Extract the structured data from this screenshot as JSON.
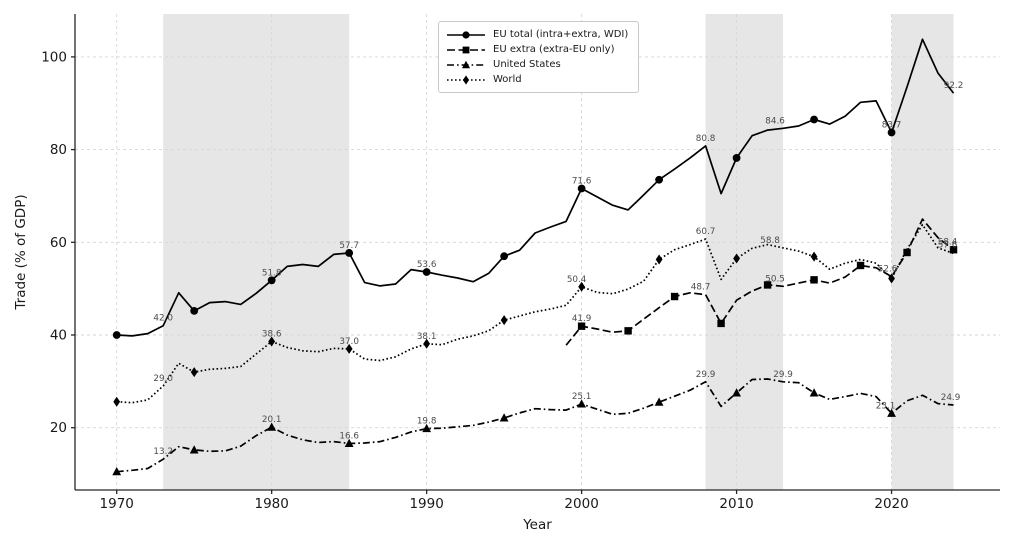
{
  "chart_data": {
    "type": "line",
    "title": "",
    "xlabel": "Year",
    "ylabel": "Trade (% of GDP)",
    "x_ticks": [
      1970,
      1980,
      1990,
      2000,
      2010,
      2020
    ],
    "y_ticks": [
      20,
      40,
      60,
      80,
      100
    ],
    "xlim": [
      1967.3,
      2027.0
    ],
    "ylim": [
      6.6,
      109.3
    ],
    "grid": true,
    "legend_position": "upper center",
    "shaded_bands": [
      [
        1973,
        1985
      ],
      [
        2008,
        2013
      ],
      [
        2020,
        2024
      ]
    ],
    "colors": {
      "line": "#000000",
      "band": "#e6e6e6",
      "grid": "#d6d6d6",
      "spine": "#262626",
      "tick_label": "#1a1a1a",
      "annotation": "#4d4d4d",
      "background": "#ffffff",
      "legend_border": "#c9c9c9"
    },
    "series": [
      {
        "name": "EU total (intra+extra, WDI)",
        "style": "solid",
        "marker": "circle",
        "marker_start": 1970,
        "marker_every": 5,
        "x_start": 1970,
        "values": [
          40.0,
          39.8,
          40.3,
          42.0,
          49.1,
          45.2,
          47.0,
          47.2,
          46.6,
          49.0,
          51.8,
          54.8,
          55.2,
          54.8,
          57.4,
          57.7,
          51.3,
          50.6,
          51.0,
          54.1,
          53.6,
          52.9,
          52.3,
          51.5,
          53.3,
          57.0,
          58.3,
          62.0,
          63.3,
          64.5,
          71.6,
          69.8,
          68.0,
          67.0,
          70.2,
          73.5,
          75.8,
          78.2,
          80.8,
          70.5,
          78.2,
          83.0,
          84.2,
          84.6,
          85.1,
          86.5,
          85.5,
          87.2,
          90.2,
          90.5,
          83.7,
          93.5,
          103.8,
          96.5,
          92.2
        ]
      },
      {
        "name": "EU extra (extra-EU only)",
        "style": "dashed",
        "marker": "square",
        "marker_start": 2000,
        "marker_every": 3,
        "x_start": 1999,
        "values": [
          37.8,
          41.9,
          41.3,
          40.6,
          40.9,
          43.4,
          45.9,
          48.3,
          49.1,
          48.7,
          42.5,
          47.5,
          49.5,
          50.8,
          50.5,
          51.2,
          51.9,
          51.2,
          52.5,
          55.0,
          54.5,
          52.6,
          57.8,
          65.0,
          61.0,
          58.4
        ]
      },
      {
        "name": "United States",
        "style": "dashdot",
        "marker": "triangle",
        "marker_start": 1970,
        "marker_every": 5,
        "x_start": 1970,
        "values": [
          10.5,
          10.8,
          11.2,
          13.2,
          15.9,
          15.2,
          14.9,
          15.0,
          16.0,
          18.3,
          20.1,
          18.4,
          17.4,
          16.8,
          17.0,
          16.6,
          16.7,
          17.0,
          17.9,
          19.1,
          19.8,
          19.9,
          20.2,
          20.5,
          21.2,
          22.1,
          23.2,
          24.1,
          23.9,
          23.8,
          25.1,
          24.0,
          22.9,
          23.1,
          24.2,
          25.5,
          26.8,
          28.1,
          29.9,
          24.6,
          27.5,
          30.4,
          30.5,
          29.9,
          29.7,
          27.5,
          26.1,
          26.7,
          27.4,
          26.7,
          23.1,
          25.8,
          27.0,
          25.2,
          24.9
        ]
      },
      {
        "name": "World",
        "style": "dotted",
        "marker": "diamond",
        "marker_start": 1970,
        "marker_every": 5,
        "x_start": 1970,
        "values": [
          25.6,
          25.4,
          26.0,
          29.0,
          33.9,
          32.0,
          32.6,
          32.8,
          33.2,
          35.9,
          38.6,
          37.3,
          36.6,
          36.4,
          37.1,
          37.0,
          34.8,
          34.5,
          35.3,
          37.0,
          38.1,
          37.9,
          39.1,
          39.8,
          40.9,
          43.2,
          44.1,
          45.0,
          45.6,
          46.4,
          50.4,
          49.2,
          48.9,
          49.9,
          51.6,
          56.3,
          58.4,
          59.5,
          60.7,
          52.0,
          56.5,
          58.7,
          59.5,
          58.8,
          58.1,
          56.9,
          54.2,
          55.5,
          56.3,
          55.5,
          52.2,
          58.5,
          63.8,
          58.8,
          57.6
        ]
      }
    ],
    "annotations": [
      {
        "s": 0,
        "year": 1973,
        "text": "42.0"
      },
      {
        "s": 0,
        "year": 1980,
        "text": "51.8"
      },
      {
        "s": 0,
        "year": 1985,
        "text": "57.7"
      },
      {
        "s": 0,
        "year": 1990,
        "text": "53.6"
      },
      {
        "s": 0,
        "year": 2000,
        "text": "71.6"
      },
      {
        "s": 0,
        "year": 2008,
        "text": "80.8"
      },
      {
        "s": 0,
        "year": 2013,
        "text": "84.6",
        "dx": -8
      },
      {
        "s": 0,
        "year": 2020,
        "text": "83.7"
      },
      {
        "s": 0,
        "year": 2024,
        "text": "92.2"
      },
      {
        "s": 1,
        "year": 2000,
        "text": "41.9"
      },
      {
        "s": 1,
        "year": 2008,
        "text": "48.7",
        "dx": -5
      },
      {
        "s": 1,
        "year": 2013,
        "text": "50.5",
        "dx": -8
      },
      {
        "s": 1,
        "year": 2020,
        "text": "52.6",
        "dx": -4
      },
      {
        "s": 1,
        "year": 2024,
        "text": "58.4",
        "dx": -6
      },
      {
        "s": 2,
        "year": 1973,
        "text": "13.2"
      },
      {
        "s": 2,
        "year": 1980,
        "text": "20.1"
      },
      {
        "s": 2,
        "year": 1985,
        "text": "16.6"
      },
      {
        "s": 2,
        "year": 1990,
        "text": "19.8"
      },
      {
        "s": 2,
        "year": 2000,
        "text": "25.1"
      },
      {
        "s": 2,
        "year": 2008,
        "text": "29.9"
      },
      {
        "s": 2,
        "year": 2013,
        "text": "29.9"
      },
      {
        "s": 2,
        "year": 2020,
        "text": "23.1",
        "dx": -6
      },
      {
        "s": 2,
        "year": 2024,
        "text": "24.9",
        "dx": -3
      },
      {
        "s": 3,
        "year": 1973,
        "text": "29.0"
      },
      {
        "s": 3,
        "year": 1980,
        "text": "38.6"
      },
      {
        "s": 3,
        "year": 1985,
        "text": "37.0"
      },
      {
        "s": 3,
        "year": 1990,
        "text": "38.1"
      },
      {
        "s": 3,
        "year": 2000,
        "text": "50.4",
        "dx": -5
      },
      {
        "s": 3,
        "year": 2008,
        "text": "60.7"
      },
      {
        "s": 3,
        "year": 2013,
        "text": "58.8",
        "dx": -13
      },
      {
        "s": 3,
        "year": 2024,
        "text": "57.6",
        "dx": -6,
        "dy": -1
      }
    ]
  }
}
